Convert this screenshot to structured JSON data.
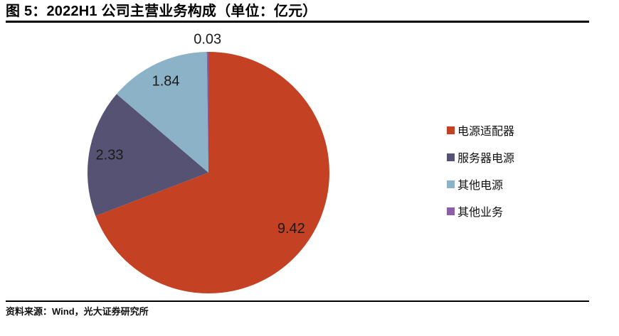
{
  "header": {
    "title": "图 5：2022H1 公司主营业务构成（单位：亿元）"
  },
  "chart_data": {
    "type": "pie",
    "title": "2022H1 公司主营业务构成",
    "unit": "亿元",
    "categories": [
      "电源适配器",
      "服务器电源",
      "其他电源",
      "其他业务"
    ],
    "values": [
      9.42,
      2.33,
      1.84,
      0.03
    ],
    "data_labels": [
      "9.42",
      "2.33",
      "1.84",
      "0.03"
    ],
    "colors": [
      "#c44123",
      "#565274",
      "#8cb2c7",
      "#8b5fa5"
    ],
    "start_angle_deg": 0,
    "direction": "clockwise",
    "legend_position": "right",
    "label_color": "#1a1a1a"
  },
  "legend": {
    "items": [
      {
        "label": "电源适配器",
        "color": "#c44123"
      },
      {
        "label": "服务器电源",
        "color": "#565274"
      },
      {
        "label": "其他电源",
        "color": "#8cb2c7"
      },
      {
        "label": "其他业务",
        "color": "#8b5fa5"
      }
    ]
  },
  "footer": {
    "source": "资料来源：Wind，光大证券研究所"
  }
}
